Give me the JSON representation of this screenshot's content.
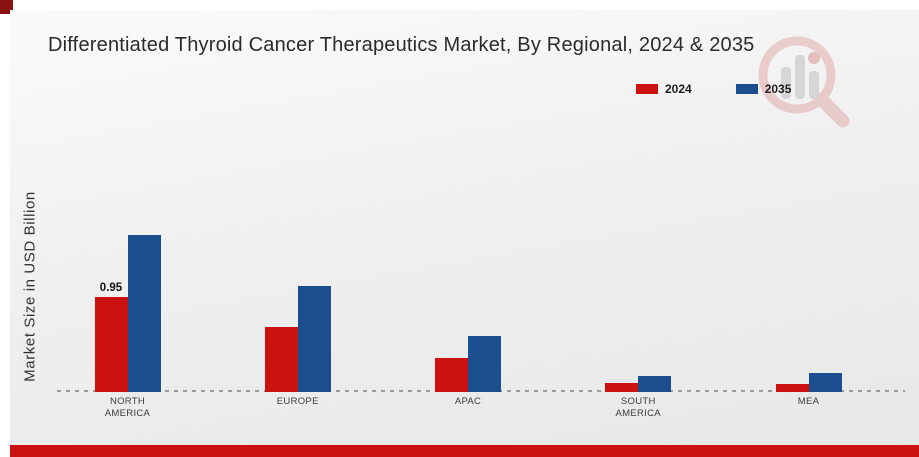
{
  "chart_data": {
    "type": "bar",
    "title": "Differentiated Thyroid Cancer Therapeutics Market, By Regional, 2024 & 2035",
    "ylabel": "Market Size in USD Billion",
    "xlabel": "",
    "categories": [
      "NORTH AMERICA",
      "EUROPE",
      "APAC",
      "SOUTH AMERICA",
      "MEA"
    ],
    "series": [
      {
        "name": "2024",
        "color": "#cc1111",
        "values": [
          0.95,
          0.65,
          0.34,
          0.09,
          0.08
        ]
      },
      {
        "name": "2035",
        "color": "#1b4e8f",
        "values": [
          1.57,
          1.06,
          0.56,
          0.16,
          0.19
        ]
      }
    ],
    "annotations": [
      {
        "series_index": 0,
        "category_index": 0,
        "text": "0.95"
      }
    ],
    "ylim": [
      0,
      1.8
    ],
    "grid": false,
    "y_ticks_visible": false,
    "baseline_style": "dashed",
    "legend_position": "top-right"
  },
  "decor": {
    "watermark_icon": "magnifier-bar-chart-logo",
    "colors": {
      "bar_2024": "#cc1111",
      "bar_2035": "#1b4e8f",
      "bottom_strip": "#cc1111",
      "corner_square": "#8a1212",
      "baseline_dash": "#9a9a9a",
      "title_text": "#2b2b2b",
      "watermark_ring": "#d98c8c",
      "watermark_bars": "#a9a9ae"
    }
  }
}
